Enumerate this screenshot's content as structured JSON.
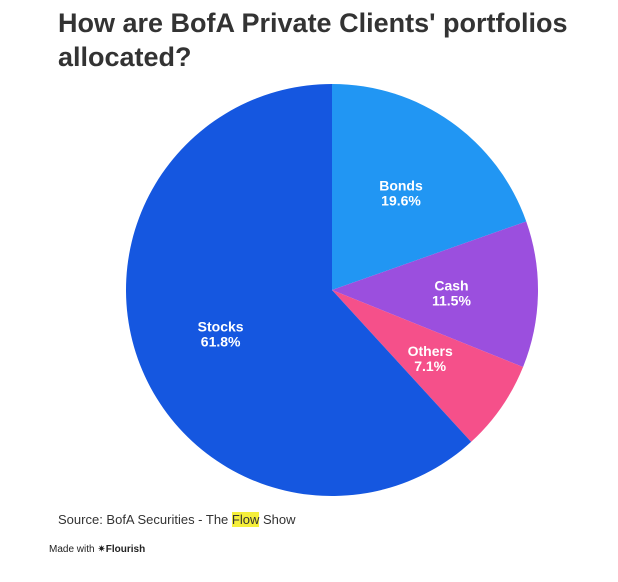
{
  "chart_data": {
    "type": "pie",
    "title": "How are BofA Private Clients' portfolios allocated?",
    "slices": [
      {
        "label": "Bonds",
        "value": 19.6,
        "display": "19.6%",
        "color": "#2196f3"
      },
      {
        "label": "Cash",
        "value": 11.5,
        "display": "11.5%",
        "color": "#9b4fde"
      },
      {
        "label": "Others",
        "value": 7.1,
        "display": "7.1%",
        "color": "#f5508a"
      },
      {
        "label": "Stocks",
        "value": 61.8,
        "display": "61.8%",
        "color": "#1557e0"
      }
    ],
    "start_angle_deg": 0,
    "direction": "clockwise"
  },
  "source": {
    "prefix": "Source: BofA Securities - The ",
    "highlight": "Flow",
    "suffix": " Show"
  },
  "footer": {
    "made_with": "Made with",
    "brand_icon": "asterisk-icon",
    "brand_glyph": "✷",
    "brand": "Flourish"
  }
}
